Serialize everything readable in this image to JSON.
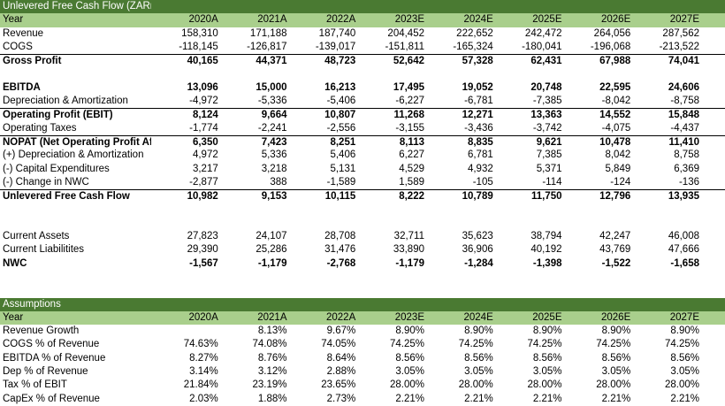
{
  "sections": {
    "fcf": {
      "title": "Unlevered Free Cash Flow (ZARm)",
      "header": [
        "Year",
        "2020A",
        "2021A",
        "2022A",
        "2023E",
        "2024E",
        "2025E",
        "2026E",
        "2027E"
      ],
      "blocks": [
        [
          {
            "label": "Revenue",
            "values": [
              "158,310",
              "171,188",
              "187,740",
              "204,452",
              "222,652",
              "242,472",
              "264,056",
              "287,562"
            ],
            "bold": false
          },
          {
            "label": "COGS",
            "values": [
              "-118,145",
              "-126,817",
              "-139,017",
              "-151,811",
              "-165,324",
              "-180,041",
              "-196,068",
              "-213,522"
            ],
            "bold": false
          },
          {
            "label": "Gross Profit",
            "values": [
              "40,165",
              "44,371",
              "48,723",
              "52,642",
              "57,328",
              "62,431",
              "67,988",
              "74,041"
            ],
            "bold": true,
            "top_border": true
          }
        ],
        [
          {
            "label": "EBITDA",
            "values": [
              "13,096",
              "15,000",
              "16,213",
              "17,495",
              "19,052",
              "20,748",
              "22,595",
              "24,606"
            ],
            "bold": true
          },
          {
            "label": "Depreciation & Amortization",
            "values": [
              "-4,972",
              "-5,336",
              "-5,406",
              "-6,227",
              "-6,781",
              "-7,385",
              "-8,042",
              "-8,758"
            ],
            "bold": false
          },
          {
            "label": "Operating Profit (EBIT)",
            "values": [
              "8,124",
              "9,664",
              "10,807",
              "11,268",
              "12,271",
              "13,363",
              "14,552",
              "15,848"
            ],
            "bold": true,
            "top_border": true
          },
          {
            "label": "Operating Taxes",
            "values": [
              "-1,774",
              "-2,241",
              "-2,556",
              "-3,155",
              "-3,436",
              "-3,742",
              "-4,075",
              "-4,437"
            ],
            "bold": false
          },
          {
            "label": "NOPAT (Net Operating Profit After Taxes)",
            "values": [
              "6,350",
              "7,423",
              "8,251",
              "8,113",
              "8,835",
              "9,621",
              "10,478",
              "11,410"
            ],
            "bold": true,
            "top_border": true
          },
          {
            "label": "(+) Depreciation & Amortization",
            "values": [
              "4,972",
              "5,336",
              "5,406",
              "6,227",
              "6,781",
              "7,385",
              "8,042",
              "8,758"
            ],
            "bold": false
          },
          {
            "label": "(-) Capital Expenditures",
            "values": [
              "3,217",
              "3,218",
              "5,131",
              "4,529",
              "4,932",
              "5,371",
              "5,849",
              "6,369"
            ],
            "bold": false
          },
          {
            "label": "(-) Change in NWC",
            "values": [
              "-2,877",
              "388",
              "-1,589",
              "1,589",
              "-105",
              "-114",
              "-124",
              "-136"
            ],
            "bold": false
          },
          {
            "label": "Unlevered Free Cash Flow",
            "values": [
              "10,982",
              "9,153",
              "10,115",
              "8,222",
              "10,789",
              "11,750",
              "12,796",
              "13,935"
            ],
            "bold": true,
            "top_border": true
          }
        ],
        [
          {
            "label": "Current Assets",
            "values": [
              "27,823",
              "24,107",
              "28,708",
              "32,711",
              "35,623",
              "38,794",
              "42,247",
              "46,008"
            ],
            "bold": false
          },
          {
            "label": "Current Liabilitites",
            "values": [
              "29,390",
              "25,286",
              "31,476",
              "33,890",
              "36,906",
              "40,192",
              "43,769",
              "47,666"
            ],
            "bold": false
          },
          {
            "label": "NWC",
            "values": [
              "-1,567",
              "-1,179",
              "-2,768",
              "-1,179",
              "-1,284",
              "-1,398",
              "-1,522",
              "-1,658"
            ],
            "bold": true
          }
        ]
      ]
    },
    "assumptions": {
      "title": "Assumptions",
      "header": [
        "Year",
        "2020A",
        "2021A",
        "2022A",
        "2023E",
        "2024E",
        "2025E",
        "2026E",
        "2027E"
      ],
      "rows": [
        {
          "label": "Revenue Growth",
          "values": [
            "",
            "8.13%",
            "9.67%",
            "8.90%",
            "8.90%",
            "8.90%",
            "8.90%",
            "8.90%"
          ]
        },
        {
          "label": "COGS % of Revenue",
          "values": [
            "74.63%",
            "74.08%",
            "74.05%",
            "74.25%",
            "74.25%",
            "74.25%",
            "74.25%",
            "74.25%"
          ]
        },
        {
          "label": "EBITDA % of Revenue",
          "values": [
            "8.27%",
            "8.76%",
            "8.64%",
            "8.56%",
            "8.56%",
            "8.56%",
            "8.56%",
            "8.56%"
          ]
        },
        {
          "label": "Dep % of Revenue",
          "values": [
            "3.14%",
            "3.12%",
            "2.88%",
            "3.05%",
            "3.05%",
            "3.05%",
            "3.05%",
            "3.05%"
          ]
        },
        {
          "label": "Tax % of EBIT",
          "values": [
            "21.84%",
            "23.19%",
            "23.65%",
            "28.00%",
            "28.00%",
            "28.00%",
            "28.00%",
            "28.00%"
          ]
        },
        {
          "label": "CapEx % of Revenue",
          "values": [
            "2.03%",
            "1.88%",
            "2.73%",
            "2.21%",
            "2.21%",
            "2.21%",
            "2.21%",
            "2.21%"
          ]
        }
      ]
    }
  },
  "colors": {
    "title_bg": "#4a7a32",
    "header_bg": "#a9cf8c"
  }
}
